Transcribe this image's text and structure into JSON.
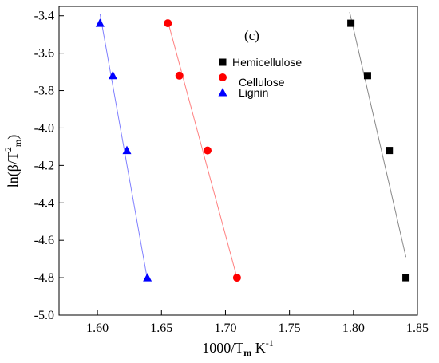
{
  "chart_data": {
    "type": "scatter",
    "panel_label": "(c)",
    "xlabel": {
      "main": "1000/T",
      "sub": "m",
      "unit": " K",
      "sup": "-1"
    },
    "ylabel": {
      "main": "ln(β/T",
      "sup": "2",
      "sub": "m",
      "close": ")"
    },
    "xlim": [
      1.57,
      1.85
    ],
    "ylim": [
      -5.0,
      -3.35
    ],
    "x_ticks": [
      1.6,
      1.65,
      1.7,
      1.75,
      1.8,
      1.85
    ],
    "x_tick_labels": [
      "1.60",
      "1.65",
      "1.70",
      "1.75",
      "1.80",
      "1.85"
    ],
    "y_ticks": [
      -3.4,
      -3.6,
      -3.8,
      -4.0,
      -4.2,
      -4.4,
      -4.6,
      -4.8,
      -5.0
    ],
    "y_tick_labels": [
      "-3.4",
      "-3.6",
      "-3.8",
      "-4.0",
      "-4.2",
      "-4.4",
      "-4.6",
      "-4.8",
      "-5.0"
    ],
    "grid": false,
    "legend_position": "top-center",
    "series": [
      {
        "name": "Hemicellulose",
        "marker": "square",
        "color": "#000000",
        "line_color": "#888888",
        "x": [
          1.798,
          1.811,
          1.828,
          1.841
        ],
        "y": [
          -3.44,
          -3.72,
          -4.12,
          -4.8
        ],
        "fit": {
          "x": [
            1.797,
            1.841
          ],
          "y": [
            -3.38,
            -4.69
          ]
        }
      },
      {
        "name": "Cellulose",
        "marker": "circle",
        "color": "#ff0000",
        "line_color": "#ff8080",
        "x": [
          1.655,
          1.664,
          1.686,
          1.709
        ],
        "y": [
          -3.44,
          -3.72,
          -4.12,
          -4.8
        ],
        "fit": {
          "x": [
            1.655,
            1.709
          ],
          "y": [
            -3.43,
            -4.8
          ]
        }
      },
      {
        "name": "Lignin",
        "marker": "triangle",
        "color": "#0000ff",
        "line_color": "#8080ff",
        "x": [
          1.602,
          1.612,
          1.623,
          1.639
        ],
        "y": [
          -3.44,
          -3.72,
          -4.12,
          -4.8
        ],
        "fit": {
          "x": [
            1.602,
            1.639
          ],
          "y": [
            -3.39,
            -4.81
          ]
        }
      }
    ]
  }
}
